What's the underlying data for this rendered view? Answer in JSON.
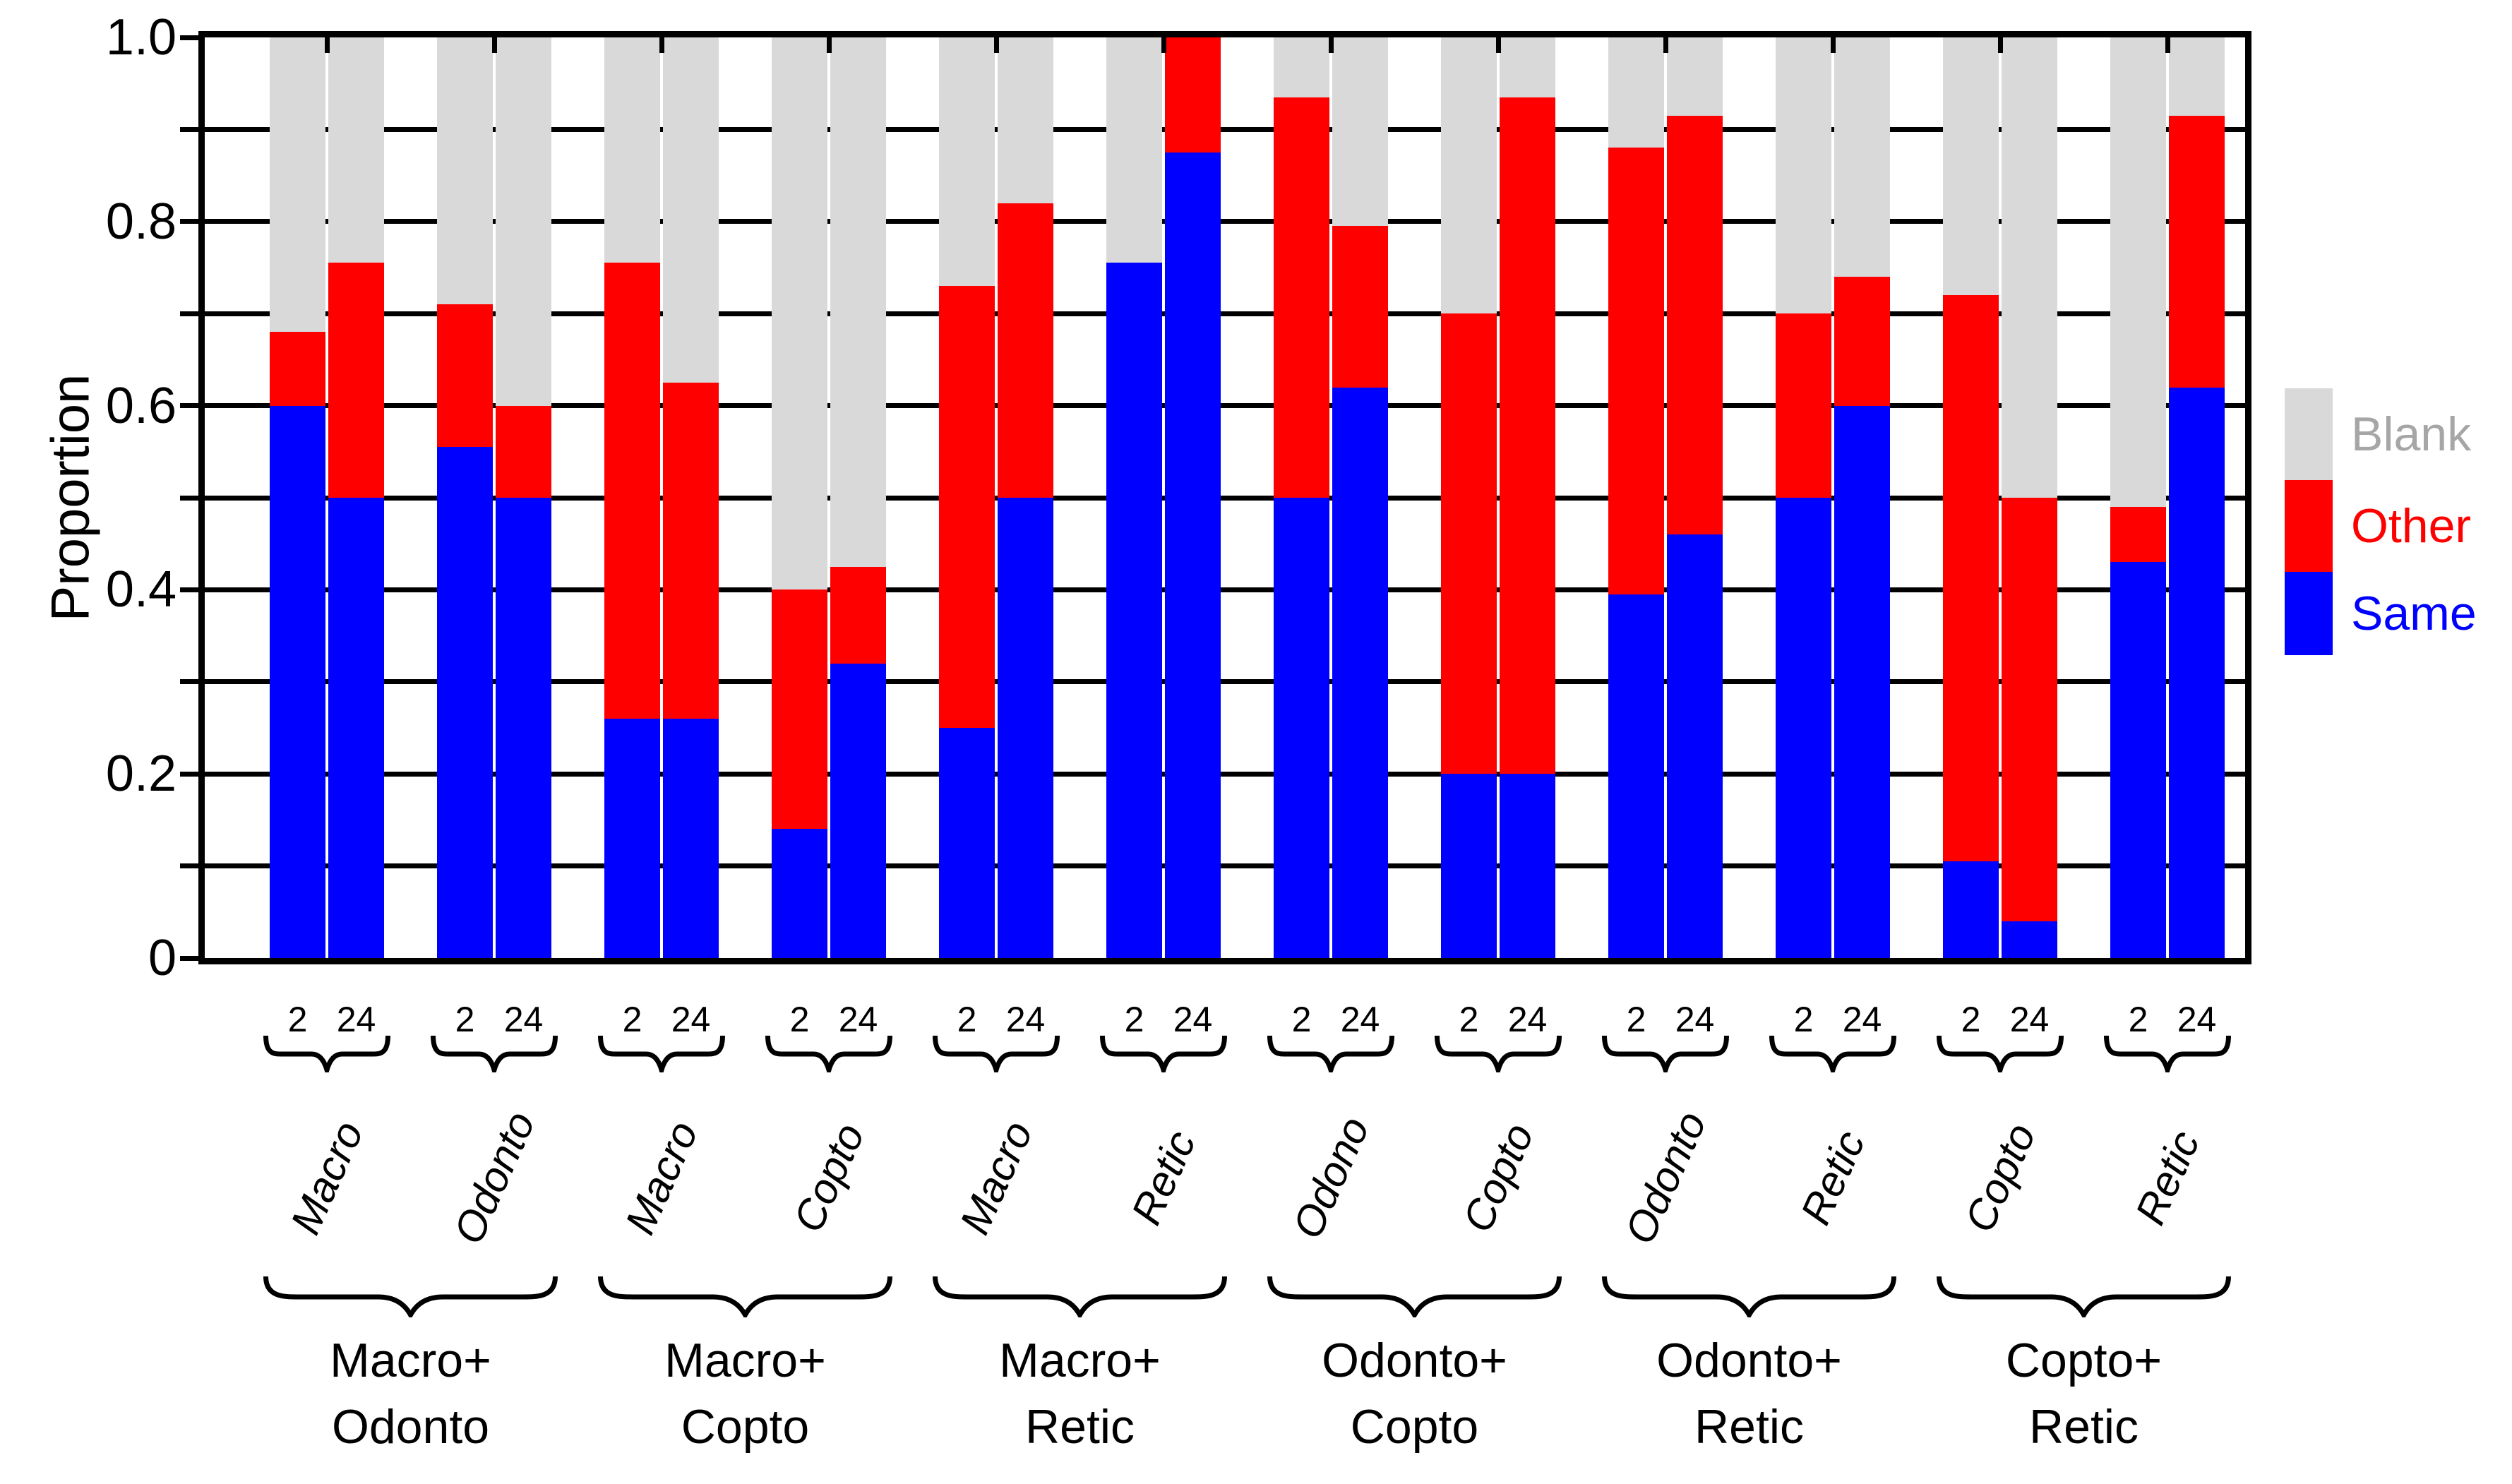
{
  "chart_data": {
    "type": "bar",
    "stacked": true,
    "grid": true,
    "legend_position": "right",
    "ylabel": "Proportion",
    "ylim": [
      0,
      1.0
    ],
    "ytick_labels": [
      "1.0",
      "0.8",
      "0.6",
      "0.4",
      "0.2",
      "0"
    ],
    "ytick_minor_step": 0.1,
    "timepoint_labels": [
      "2",
      "24"
    ],
    "series_order_bottom_to_top": [
      "Same",
      "Other",
      "Blank"
    ],
    "colors": {
      "Same": "#0000ff",
      "Other": "#ff0000",
      "Blank": "#d9d9d9"
    },
    "legend": [
      {
        "label": "Blank",
        "swatch_color": "#d9d9d9",
        "text_color": "#a6a6a6"
      },
      {
        "label": "Other",
        "swatch_color": "#ff0000",
        "text_color": "#ff0000"
      },
      {
        "label": "Same",
        "swatch_color": "#0000ff",
        "text_color": "#0000ff"
      }
    ],
    "groups": [
      {
        "label_lines": [
          "Macro+",
          "Odonto"
        ],
        "species": [
          {
            "name": "Macro",
            "same": [
              0.6,
              0.5
            ],
            "other": [
              0.08,
              0.255
            ],
            "blank": [
              0.32,
              0.245
            ]
          },
          {
            "name": "Odonto",
            "same": [
              0.555,
              0.5
            ],
            "other": [
              0.155,
              0.1
            ],
            "blank": [
              0.29,
              0.4
            ]
          }
        ]
      },
      {
        "label_lines": [
          "Macro+",
          "Copto"
        ],
        "species": [
          {
            "name": "Macro",
            "same": [
              0.26,
              0.26
            ],
            "other": [
              0.495,
              0.365
            ],
            "blank": [
              0.245,
              0.375
            ]
          },
          {
            "name": "Copto",
            "same": [
              0.14,
              0.32
            ],
            "other": [
              0.26,
              0.105
            ],
            "blank": [
              0.6,
              0.575
            ]
          }
        ]
      },
      {
        "label_lines": [
          "Macro+",
          "Retic"
        ],
        "species": [
          {
            "name": "Macro",
            "same": [
              0.25,
              0.5
            ],
            "other": [
              0.48,
              0.32
            ],
            "blank": [
              0.27,
              0.18
            ]
          },
          {
            "name": "Retic",
            "same": [
              0.755,
              0.875
            ],
            "other": [
              0.0,
              0.125
            ],
            "blank": [
              0.245,
              0.0
            ]
          }
        ]
      },
      {
        "label_lines": [
          "Odonto+",
          "Copto"
        ],
        "species": [
          {
            "name": "Odono",
            "same": [
              0.5,
              0.62
            ],
            "other": [
              0.435,
              0.175
            ],
            "blank": [
              0.065,
              0.205
            ]
          },
          {
            "name": "Copto",
            "same": [
              0.2,
              0.2
            ],
            "other": [
              0.5,
              0.735
            ],
            "blank": [
              0.3,
              0.065
            ]
          }
        ]
      },
      {
        "label_lines": [
          "Odonto+",
          "Retic"
        ],
        "species": [
          {
            "name": "Odonto",
            "same": [
              0.395,
              0.46
            ],
            "other": [
              0.485,
              0.455
            ],
            "blank": [
              0.12,
              0.085
            ]
          },
          {
            "name": "Retic",
            "same": [
              0.5,
              0.6
            ],
            "other": [
              0.2,
              0.14
            ],
            "blank": [
              0.3,
              0.26
            ]
          }
        ]
      },
      {
        "label_lines": [
          "Copto+",
          "Retic"
        ],
        "species": [
          {
            "name": "Copto",
            "same": [
              0.105,
              0.04
            ],
            "other": [
              0.615,
              0.46
            ],
            "blank": [
              0.28,
              0.5
            ]
          },
          {
            "name": "Retic",
            "same": [
              0.43,
              0.62
            ],
            "other": [
              0.06,
              0.295
            ],
            "blank": [
              0.51,
              0.085
            ]
          }
        ]
      }
    ]
  }
}
